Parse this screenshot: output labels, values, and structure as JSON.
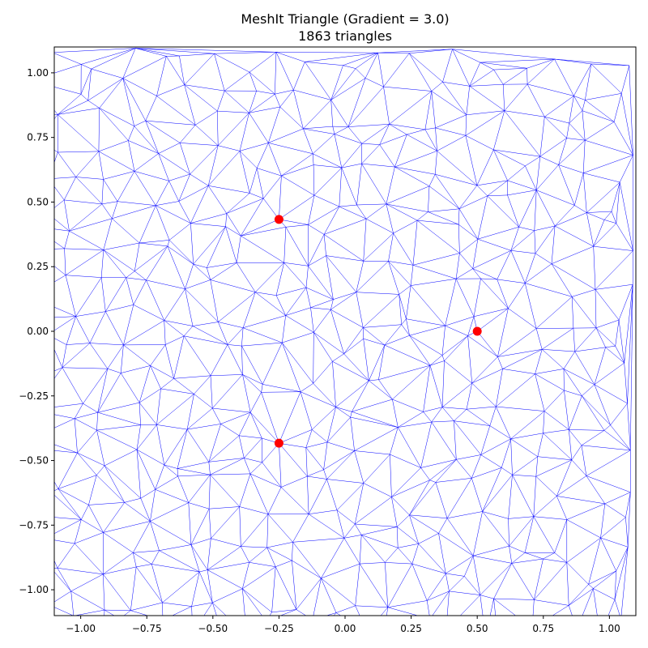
{
  "chart_data": {
    "type": "scatter",
    "title": "MeshIt Triangle (Gradient = 3.0)",
    "subtitle": "1863 triangles",
    "xlabel": "",
    "ylabel": "",
    "xlim": [
      -1.1,
      1.1
    ],
    "ylim": [
      -1.1,
      1.1
    ],
    "xticks": [
      -1.0,
      -0.75,
      -0.5,
      -0.25,
      0.0,
      0.25,
      0.5,
      0.75,
      1.0
    ],
    "xtick_labels": [
      "−1.00",
      "−0.75",
      "−0.50",
      "−0.25",
      "0.00",
      "0.25",
      "0.50",
      "0.75",
      "1.00"
    ],
    "yticks": [
      1.0,
      0.75,
      0.5,
      0.25,
      0.0,
      -0.25,
      -0.5,
      -0.75,
      -1.0
    ],
    "ytick_labels": [
      "1.00",
      "0.75",
      "0.50",
      "0.25",
      "0.00",
      "−0.25",
      "−0.50",
      "−0.75",
      "−1.00"
    ],
    "grid": false,
    "mesh_color": "#0000ff",
    "point_color": "#ff0000",
    "points": [
      {
        "x": -0.25,
        "y": 0.433
      },
      {
        "x": 0.5,
        "y": 0.0
      },
      {
        "x": -0.25,
        "y": -0.433
      }
    ]
  }
}
